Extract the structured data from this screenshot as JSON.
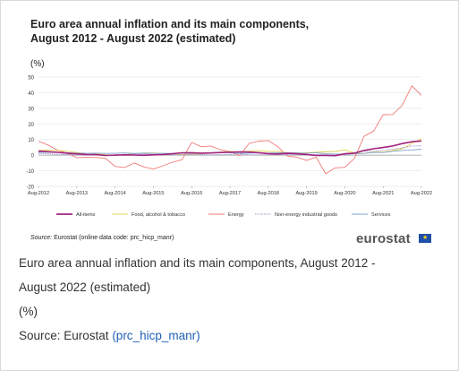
{
  "chart_data": {
    "type": "line",
    "title_line1": "Euro area annual inflation and its main components,",
    "title_line2": "August 2012 - August 2022 (estimated)",
    "unit": "(%)",
    "ylim": [
      -20,
      50
    ],
    "y_ticks": [
      "50",
      "40",
      "30",
      "20",
      "10",
      "0",
      "-10",
      "-20"
    ],
    "x_ticks": [
      "Aug-2012",
      "Aug-2013",
      "Aug-2014",
      "Aug-2015",
      "Aug-2016",
      "Aug-2017",
      "Aug-2018",
      "Aug-2019",
      "Aug-2020",
      "Aug-2021",
      "Aug-2022"
    ],
    "grid": true,
    "legend_position": "bottom",
    "series": [
      {
        "name": "All-items",
        "color": "#a3237e",
        "values": [
          2.6,
          2.2,
          1.8,
          1.3,
          0.8,
          0.4,
          0.3,
          -0.2,
          0.0,
          0.2,
          0.1,
          -0.1,
          0.2,
          0.4,
          0.9,
          1.5,
          1.6,
          1.3,
          1.4,
          1.7,
          1.9,
          2.1,
          2.0,
          1.6,
          1.0,
          0.7,
          1.2,
          0.9,
          0.4,
          -0.2,
          -0.2,
          -0.3,
          0.9,
          1.3,
          3.0,
          4.1,
          4.9,
          5.9,
          7.4,
          8.6,
          9.1
        ]
      },
      {
        "name": "Food, alcohol & tobacco",
        "color": "#e0d050",
        "values": [
          3.0,
          3.2,
          3.0,
          2.5,
          1.7,
          1.1,
          0.9,
          0.3,
          -0.3,
          0.4,
          1.0,
          1.4,
          1.4,
          1.1,
          0.8,
          0.4,
          0.7,
          0.9,
          1.4,
          2.0,
          2.4,
          2.2,
          2.5,
          2.9,
          2.4,
          2.3,
          1.6,
          1.4,
          1.6,
          1.9,
          2.1,
          2.4,
          3.4,
          1.4,
          1.2,
          2.0,
          2.0,
          2.9,
          4.1,
          7.5,
          10.6
        ]
      },
      {
        "name": "Energy",
        "color": "#f07a7a",
        "values": [
          8.9,
          6.5,
          3.2,
          1.2,
          -1.6,
          -1.4,
          -1.5,
          -2.0,
          -7.2,
          -7.9,
          -5.0,
          -7.5,
          -8.9,
          -6.8,
          -4.5,
          -2.9,
          8.1,
          5.4,
          5.9,
          3.5,
          2.3,
          -0.3,
          7.5,
          9.0,
          9.3,
          5.5,
          -0.6,
          -1.3,
          -3.4,
          -1.3,
          -11.9,
          -8.1,
          -7.8,
          -2.1,
          12.0,
          15.4,
          25.9,
          26.0,
          32.0,
          44.4,
          38.3
        ]
      },
      {
        "name": "Non-energy industrial goods",
        "color": "#9a93c9",
        "values": [
          1.1,
          0.9,
          0.5,
          0.4,
          0.3,
          0.2,
          0.1,
          0.0,
          0.1,
          0.3,
          0.7,
          0.7,
          0.5,
          0.4,
          0.3,
          0.2,
          0.5,
          0.4,
          0.2,
          0.3,
          0.5,
          0.8,
          0.2,
          0.2,
          0.3,
          0.5,
          0.4,
          0.4,
          0.3,
          0.4,
          0.5,
          -0.1,
          0.3,
          1.0,
          2.6,
          2.4,
          3.1,
          3.8,
          4.6,
          5.9,
          6.0
        ]
      },
      {
        "name": "Services",
        "color": "#7fa2d1",
        "values": [
          1.8,
          1.9,
          1.7,
          1.5,
          1.3,
          1.2,
          1.3,
          1.1,
          1.2,
          1.4,
          1.1,
          1.3,
          1.2,
          1.1,
          1.1,
          1.2,
          1.1,
          1.3,
          1.5,
          1.7,
          1.6,
          1.2,
          1.3,
          1.5,
          1.3,
          1.6,
          1.6,
          1.4,
          1.2,
          1.6,
          0.9,
          0.7,
          0.7,
          0.9,
          1.1,
          1.7,
          1.7,
          2.5,
          3.0,
          3.3,
          3.8
        ]
      }
    ],
    "source_label": "Source:",
    "source_text": "Eurostat (online data code: prc_hicp_manr)"
  },
  "logo_text": "eurostat",
  "caption": {
    "title": "Euro area annual inflation and its main components, August 2012 -",
    "title_cont": "August 2022 (estimated)",
    "unit": "(%)",
    "source_prefix": "Source: Eurostat ",
    "source_link": "(prc_hicp_manr)"
  }
}
